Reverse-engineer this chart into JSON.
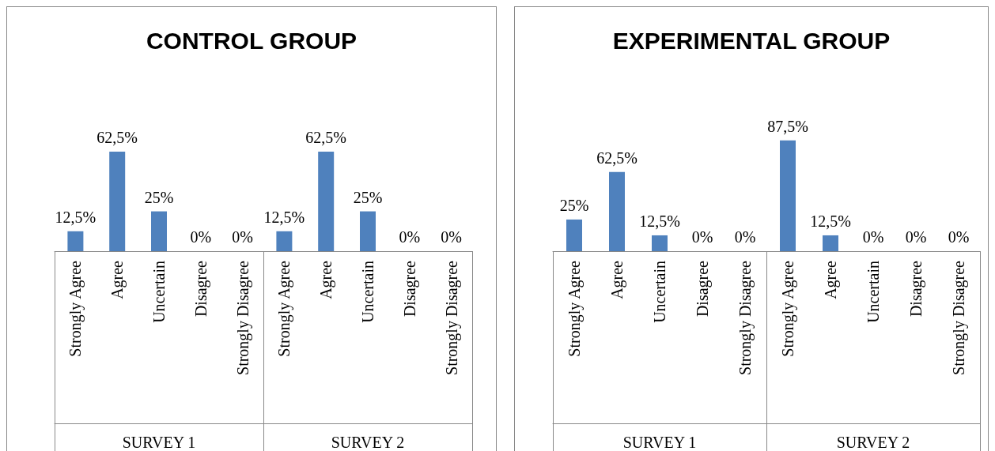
{
  "chart_data": [
    {
      "type": "bar",
      "title": "CONTROL GROUP",
      "categories": [
        "Strongly Agree",
        "Agree",
        "Uncertain",
        "Disagree",
        "Strongly Disagree",
        "Strongly Agree",
        "Agree",
        "Uncertain",
        "Disagree",
        "Strongly Disagree"
      ],
      "values": [
        12.5,
        62.5,
        25,
        0,
        0,
        12.5,
        62.5,
        25,
        0,
        0
      ],
      "value_labels": [
        "12,5%",
        "62,5%",
        "25%",
        "0%",
        "0%",
        "12,5%",
        "62,5%",
        "25%",
        "0%",
        "0%"
      ],
      "color": "#4f81bd",
      "annotations": [
        "SURVEY 1",
        "SURVEY 2"
      ]
    },
    {
      "type": "bar",
      "title": "EXPERIMENTAL GROUP",
      "categories": [
        "Strongly Agree",
        "Agree",
        "Uncertain",
        "Disagree",
        "Strongly Disagree",
        "Strongly Agree",
        "Agree",
        "Uncertain",
        "Disagree",
        "Strongly Disagree"
      ],
      "values": [
        25,
        62.5,
        12.5,
        0,
        0,
        87.5,
        12.5,
        0,
        0,
        0
      ],
      "value_labels": [
        "25%",
        "62,5%",
        "12,5%",
        "0%",
        "0%",
        "87,5%",
        "12,5%",
        "0%",
        "0%",
        "0%"
      ],
      "color": "#4f81bd",
      "annotations": [
        "SURVEY 1",
        "SURVEY 2"
      ]
    }
  ]
}
